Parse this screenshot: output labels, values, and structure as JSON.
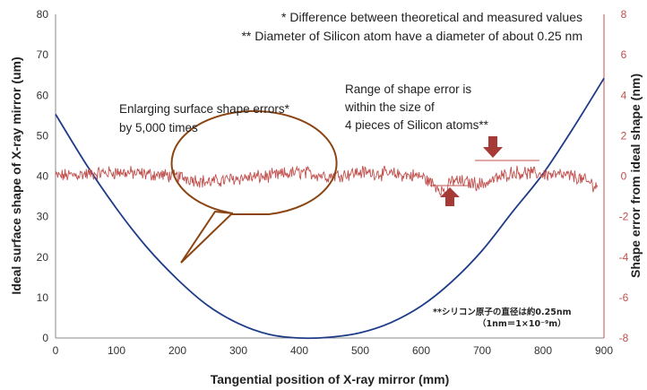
{
  "chart_data": {
    "type": "line",
    "xlabel": "Tangential position of X-ray mirror (mm)",
    "ylabel_left": "Ideal surface shape of X-ray mirror (um)",
    "ylabel_right": "Shape error from ideal shape (nm)",
    "xlim": [
      0,
      900
    ],
    "ylim_left": [
      0,
      80
    ],
    "ylim_right": [
      -8,
      8
    ],
    "x_ticks": [
      "0",
      "100",
      "200",
      "300",
      "400",
      "500",
      "600",
      "700",
      "800",
      "900"
    ],
    "y_left_ticks": [
      "0",
      "10",
      "20",
      "30",
      "40",
      "50",
      "60",
      "70",
      "80"
    ],
    "y_right_ticks": [
      "-8",
      "-6",
      "-4",
      "-2",
      "0",
      "2",
      "4",
      "6",
      "8"
    ],
    "grid": false,
    "series": [
      {
        "axis": "left",
        "color": "#1f3c88",
        "x": [
          0,
          50,
          100,
          150,
          200,
          250,
          300,
          350,
          400,
          450,
          500,
          550,
          600,
          650,
          700,
          750,
          800,
          850,
          900
        ],
        "y": [
          55.3,
          43.0,
          32.0,
          22.4,
          14.5,
          8.0,
          3.6,
          0.9,
          0.0,
          0.2,
          1.3,
          3.8,
          7.9,
          13.9,
          21.6,
          31.2,
          40.6,
          52.0,
          64.2
        ]
      },
      {
        "axis": "right",
        "color": "#c0504d",
        "x": [
          0,
          50,
          100,
          150,
          200,
          250,
          300,
          350,
          400,
          450,
          500,
          550,
          600,
          640,
          650,
          700,
          750,
          800,
          850,
          890
        ],
        "y": [
          0.0,
          0.1,
          0.2,
          0.1,
          0.0,
          -0.3,
          -0.1,
          0.0,
          0.2,
          0.0,
          0.2,
          0.1,
          0.0,
          -0.8,
          -0.2,
          -0.4,
          0.2,
          0.1,
          0.0,
          -0.5
        ]
      }
    ],
    "annotations": {
      "note1": "* Difference between theoretical and measured values",
      "note2": "** Diameter of Silicon atom have a diameter of about 0.25 nm",
      "callout_left": [
        "Enlarging surface shape errors*",
        "by 5,000 times"
      ],
      "callout_right": [
        "Range of shape error is",
        "within the size of",
        "4 pieces of Silicon atoms**"
      ],
      "jp_note_1": "**シリコン原子の直径は約0.25nm",
      "jp_note_2": "（1nm＝1×10⁻⁹m）"
    }
  }
}
